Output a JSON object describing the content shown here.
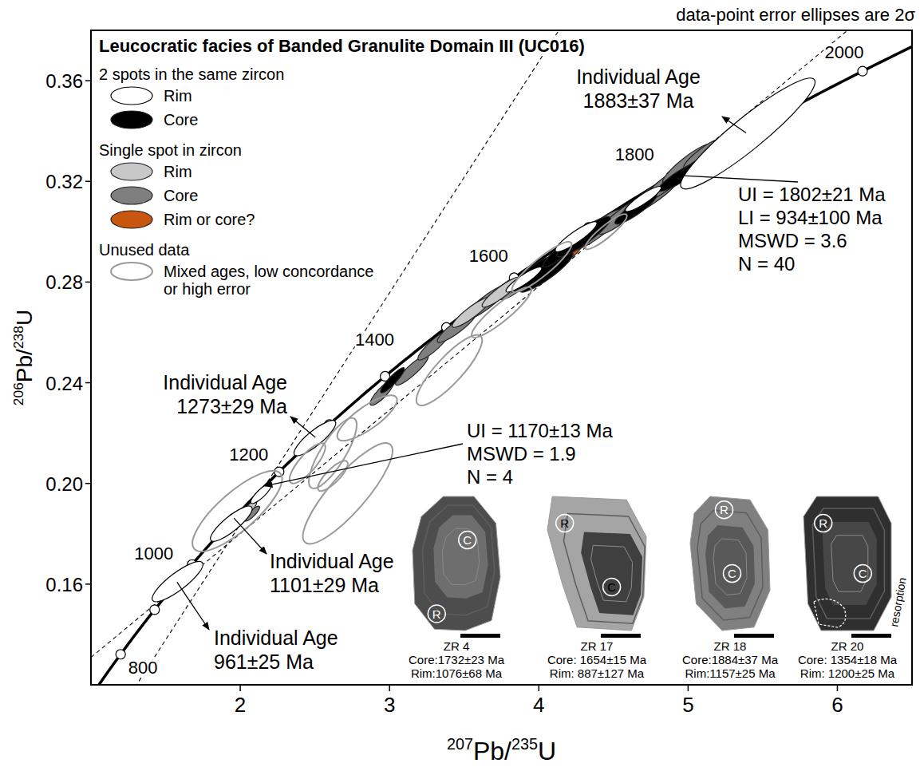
{
  "chart_data": {
    "type": "concordia",
    "title": "Leucocratic facies of Banded Granulite Domain III (UC016)",
    "note": "data-point error ellipses are 2σ",
    "x_label": "207Pb/235U",
    "y_label": "206Pb/238U",
    "xlim": [
      1.0,
      6.5
    ],
    "ylim": [
      0.12,
      0.38
    ],
    "xticks": [
      2,
      3,
      4,
      5,
      6
    ],
    "yticks": [
      0.16,
      {
        "value": 0.2,
        "label": "0.20"
      },
      0.24,
      0.28,
      0.32,
      0.36
    ],
    "grid": false,
    "legend": "top-left",
    "concordia": {
      "ages": [
        800,
        900,
        1000,
        1100,
        1200,
        1300,
        1400,
        1500,
        1600,
        1700,
        1800,
        1900,
        2000
      ],
      "labels": [
        800,
        1000,
        1200,
        1400,
        1600,
        1800,
        2000
      ]
    },
    "series": [
      {
        "name": "Rim",
        "group": "2 spots in the same zircon",
        "color": "#ffffff",
        "marker": "ellipse",
        "x": [
          1.58,
          1.94,
          2.14,
          2.5,
          3.9,
          4.25,
          4.7,
          5.4
        ],
        "values": [
          0.161,
          0.184,
          0.196,
          0.218,
          0.281,
          0.298,
          0.313,
          0.339
        ],
        "x_err": [
          0.17,
          0.14,
          0.07,
          0.14,
          0.12,
          0.14,
          0.12,
          0.45
        ],
        "y_err": [
          0.008,
          0.007,
          0.004,
          0.007,
          0.005,
          0.006,
          0.005,
          0.022
        ],
        "rho": [
          0.85,
          0.85,
          0.85,
          0.85,
          0.9,
          0.9,
          0.9,
          0.93
        ]
      },
      {
        "name": "Core",
        "group": "2 spots in the same zircon",
        "color": "#000000",
        "marker": "ellipse",
        "x": [
          3.02,
          3.95,
          4.05,
          4.15,
          4.3,
          4.65,
          4.95,
          5.05
        ],
        "values": [
          0.241,
          0.283,
          0.284,
          0.292,
          0.298,
          0.309,
          0.322,
          0.326
        ],
        "x_err": [
          0.08,
          0.14,
          0.18,
          0.12,
          0.18,
          0.14,
          0.15,
          0.12
        ],
        "y_err": [
          0.005,
          0.007,
          0.008,
          0.006,
          0.008,
          0.006,
          0.006,
          0.005
        ],
        "rho": [
          0.9,
          0.9,
          0.9,
          0.9,
          0.9,
          0.9,
          0.9,
          0.9
        ]
      },
      {
        "name": "Rim",
        "group": "Single spot in zircon",
        "color": "#c8c8c8",
        "marker": "ellipse",
        "x": [
          2.06,
          3.55,
          3.75
        ],
        "values": [
          0.19,
          0.268,
          0.276
        ],
        "x_err": [
          0.05,
          0.13,
          0.13
        ],
        "y_err": [
          0.003,
          0.006,
          0.006
        ],
        "rho": [
          0.8,
          0.9,
          0.9
        ]
      },
      {
        "name": "Core",
        "group": "Single spot in zircon",
        "color": "#7f7f7f",
        "marker": "ellipse",
        "x": [
          2.08,
          2.95,
          3.15,
          3.3,
          3.45,
          3.65,
          3.85,
          4.4,
          4.55,
          4.75,
          4.85,
          5.0,
          5.1
        ],
        "values": [
          0.188,
          0.236,
          0.245,
          0.255,
          0.262,
          0.272,
          0.278,
          0.301,
          0.306,
          0.314,
          0.319,
          0.327,
          0.331
        ],
        "x_err": [
          0.05,
          0.08,
          0.11,
          0.11,
          0.13,
          0.15,
          0.11,
          0.17,
          0.15,
          0.19,
          0.15,
          0.17,
          0.13
        ],
        "y_err": [
          0.003,
          0.005,
          0.006,
          0.006,
          0.006,
          0.007,
          0.005,
          0.008,
          0.007,
          0.008,
          0.007,
          0.008,
          0.006
        ],
        "rho": [
          0.85,
          0.85,
          0.9,
          0.9,
          0.9,
          0.9,
          0.9,
          0.9,
          0.9,
          0.9,
          0.9,
          0.9,
          0.9
        ]
      },
      {
        "name": "Rim or core?",
        "group": "Single spot in zircon",
        "color": "#c8560f",
        "marker": "ellipse",
        "x": [
          4.25
        ],
        "values": [
          0.293
        ],
        "x_err": [
          0.06
        ],
        "y_err": [
          0.004
        ],
        "rho": [
          0.9
        ]
      },
      {
        "name": "Mixed ages, low concordance or high error",
        "group": "Unused data",
        "color": "#9a9a9a",
        "marker": "outline",
        "x": [
          1.98,
          2.45,
          2.62,
          2.72,
          2.85,
          2.62,
          3.4,
          3.75,
          4.02,
          4.45
        ],
        "values": [
          0.189,
          0.208,
          0.212,
          0.196,
          0.226,
          0.203,
          0.245,
          0.268,
          0.286,
          0.3
        ],
        "x_err": [
          0.3,
          0.12,
          0.16,
          0.3,
          0.2,
          0.1,
          0.22,
          0.2,
          0.2,
          0.14
        ],
        "y_err": [
          0.016,
          0.008,
          0.014,
          0.02,
          0.009,
          0.006,
          0.014,
          0.01,
          0.01,
          0.007
        ],
        "rho": [
          0.8,
          0.8,
          0.8,
          0.85,
          0.8,
          0.8,
          0.85,
          0.9,
          0.9,
          0.9
        ]
      }
    ],
    "annotations": [
      {
        "lines": [
          "Individual Age",
          "1883±37 Ma"
        ],
        "age": 1883
      },
      {
        "lines": [
          "Individual Age",
          "1273±29 Ma"
        ],
        "age": 1273
      },
      {
        "lines": [
          "Individual Age",
          "1101±29 Ma"
        ],
        "age": 1101
      },
      {
        "lines": [
          "Individual Age",
          "961±25 Ma"
        ],
        "age": 961
      }
    ],
    "discordia": [
      {
        "lines": [
          "UI = 1802±21 Ma",
          "LI = 934±100 Ma",
          "MSWD = 3.6",
          "N = 40"
        ],
        "upper": 1802,
        "lower": 934
      },
      {
        "lines": [
          "UI = 1170±13 Ma",
          "MSWD = 1.9",
          "N = 4"
        ],
        "upper": 1170
      }
    ],
    "zircons": [
      {
        "name": "ZR 4",
        "core": "Core:1732±23 Ma",
        "rim": "Rim:1076±68 Ma",
        "core_spot": "C",
        "rim_spot": "R"
      },
      {
        "name": "ZR 17",
        "core": "Core: 1654±15 Ma",
        "rim": "Rim: 887±127 Ma",
        "core_spot": "C",
        "rim_spot": "R"
      },
      {
        "name": "ZR 18",
        "core": "Core:1884±37 Ma",
        "rim": "Rim:1157±25 Ma",
        "core_spot": "C",
        "rim_spot": "R"
      },
      {
        "name": "ZR 20",
        "core": "Core: 1354±18 Ma",
        "rim": "Rim: 1200±25 Ma",
        "core_spot": "C",
        "rim_spot": "R",
        "feature": "resorption"
      }
    ]
  }
}
